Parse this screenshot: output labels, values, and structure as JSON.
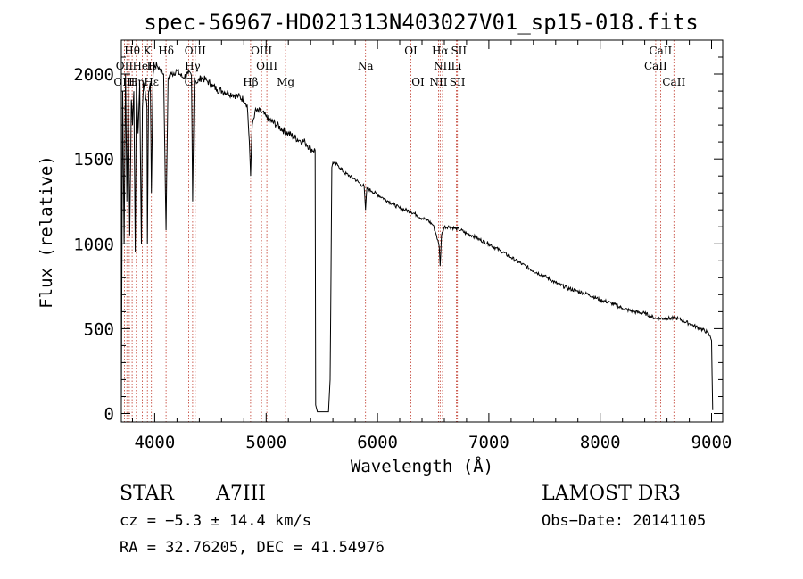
{
  "chart_data": {
    "type": "line",
    "title": "spec-56967-HD021313N403027V01_sp15-018.fits",
    "xlabel": "Wavelength (Å)",
    "ylabel": "Flux (relative)",
    "xlim": [
      3700,
      9100
    ],
    "ylim": [
      -50,
      2200
    ],
    "xticks": [
      4000,
      5000,
      6000,
      7000,
      8000,
      9000
    ],
    "xtick_labels": [
      "4000",
      "5000",
      "6000",
      "7000",
      "8000",
      "9000"
    ],
    "yticks": [
      0,
      500,
      1000,
      1500,
      2000
    ],
    "ytick_labels": [
      "0",
      "500",
      "1000",
      "1500",
      "2000"
    ],
    "series": [
      {
        "name": "spectrum",
        "x": [
          3700,
          3712,
          3725,
          3738,
          3750,
          3762,
          3775,
          3790,
          3800,
          3812,
          3825,
          3835,
          3850,
          3865,
          3880,
          3889,
          3900,
          3915,
          3930,
          3934,
          3945,
          3960,
          3970,
          3985,
          4000,
          4020,
          4050,
          4080,
          4101,
          4120,
          4150,
          4200,
          4250,
          4300,
          4330,
          4340,
          4355,
          4380,
          4420,
          4470,
          4520,
          4560,
          4610,
          4660,
          4700,
          4750,
          4800,
          4830,
          4850,
          4861,
          4875,
          4900,
          4950,
          5000,
          5050,
          5100,
          5150,
          5200,
          5250,
          5300,
          5350,
          5400,
          5440,
          5445,
          5460,
          5560,
          5575,
          5590,
          5600,
          5650,
          5700,
          5750,
          5800,
          5850,
          5880,
          5893,
          5905,
          5950,
          6000,
          6050,
          6100,
          6150,
          6200,
          6250,
          6300,
          6350,
          6400,
          6450,
          6500,
          6530,
          6555,
          6563,
          6575,
          6600,
          6650,
          6700,
          6750,
          6800,
          6850,
          6900,
          7000,
          7100,
          7200,
          7300,
          7400,
          7500,
          7600,
          7700,
          7800,
          7900,
          8000,
          8100,
          8200,
          8300,
          8400,
          8500,
          8600,
          8700,
          8800,
          8900,
          8960,
          8990,
          9000,
          9010
        ],
        "values": [
          50,
          1900,
          1000,
          2000,
          1250,
          1950,
          1050,
          1850,
          1700,
          1900,
          950,
          1950,
          1650,
          1950,
          1000,
          1800,
          1950,
          1900,
          1800,
          1000,
          1900,
          1950,
          1300,
          2000,
          2050,
          2050,
          2030,
          2000,
          1080,
          1980,
          2000,
          2020,
          1980,
          2000,
          1990,
          1250,
          1980,
          1950,
          1980,
          1960,
          1930,
          1910,
          1900,
          1890,
          1880,
          1870,
          1850,
          1820,
          1600,
          1400,
          1700,
          1780,
          1780,
          1750,
          1720,
          1700,
          1670,
          1650,
          1630,
          1610,
          1600,
          1560,
          1550,
          50,
          10,
          10,
          200,
          1450,
          1480,
          1460,
          1420,
          1400,
          1380,
          1350,
          1340,
          1200,
          1330,
          1310,
          1290,
          1270,
          1250,
          1230,
          1210,
          1200,
          1190,
          1170,
          1150,
          1140,
          1110,
          1050,
          980,
          870,
          1050,
          1100,
          1100,
          1090,
          1080,
          1060,
          1050,
          1030,
          1000,
          960,
          920,
          880,
          840,
          810,
          770,
          740,
          720,
          700,
          670,
          650,
          620,
          600,
          590,
          560,
          560,
          560,
          530,
          500,
          480,
          450,
          430,
          20
        ]
      }
    ],
    "line_labels": [
      {
        "label": "Hθ",
        "wavelength": 3797,
        "row": 1
      },
      {
        "label": "K",
        "wavelength": 3934,
        "row": 1
      },
      {
        "label": "Hδ",
        "wavelength": 4101,
        "row": 1
      },
      {
        "label": "OIII",
        "wavelength": 4363,
        "row": 1
      },
      {
        "label": "OIII",
        "wavelength": 4959,
        "row": 1
      },
      {
        "label": "OI",
        "wavelength": 6300,
        "row": 1
      },
      {
        "label": "Hα",
        "wavelength": 6563,
        "row": 1
      },
      {
        "label": "SII",
        "wavelength": 6731,
        "row": 1
      },
      {
        "label": "CaII",
        "wavelength": 8542,
        "row": 1
      },
      {
        "label": "OII",
        "wavelength": 3727,
        "row": 2
      },
      {
        "label": "HeI",
        "wavelength": 3889,
        "row": 2
      },
      {
        "label": "H",
        "wavelength": 3970,
        "row": 2
      },
      {
        "label": "Hγ",
        "wavelength": 4340,
        "row": 2
      },
      {
        "label": "OIII",
        "wavelength": 5007,
        "row": 2
      },
      {
        "label": "Na",
        "wavelength": 5893,
        "row": 2
      },
      {
        "label": "NII",
        "wavelength": 6584,
        "row": 2
      },
      {
        "label": "Li",
        "wavelength": 6708,
        "row": 2
      },
      {
        "label": "CaII",
        "wavelength": 8498,
        "row": 2
      },
      {
        "label": "OIII",
        "wavelength": 3727,
        "row": 3
      },
      {
        "label": "Hη",
        "wavelength": 3835,
        "row": 3
      },
      {
        "label": "Hε",
        "wavelength": 3970,
        "row": 3
      },
      {
        "label": "G",
        "wavelength": 4304,
        "row": 3
      },
      {
        "label": "Hβ",
        "wavelength": 4861,
        "row": 3
      },
      {
        "label": "Mg",
        "wavelength": 5175,
        "row": 3
      },
      {
        "label": "OI",
        "wavelength": 6364,
        "row": 3
      },
      {
        "label": "NII",
        "wavelength": 6548,
        "row": 3
      },
      {
        "label": "SII",
        "wavelength": 6717,
        "row": 3
      },
      {
        "label": "CaII",
        "wavelength": 8662,
        "row": 3
      }
    ],
    "line_marker_wavelengths": [
      3727,
      3750,
      3771,
      3797,
      3835,
      3889,
      3934,
      3970,
      4101,
      4304,
      4340,
      4363,
      4861,
      4959,
      5007,
      5175,
      5893,
      6300,
      6364,
      6548,
      6563,
      6584,
      6708,
      6717,
      6731,
      8498,
      8542,
      8662
    ]
  },
  "info": {
    "object_type": "STAR",
    "subclass": "A7III",
    "survey": "LAMOST DR3",
    "cz": "cz = −5.3 ± 14.4 km/s",
    "obs_date": "Obs−Date: 20141105",
    "coords": "RA =  32.76205, DEC =  41.54976"
  }
}
